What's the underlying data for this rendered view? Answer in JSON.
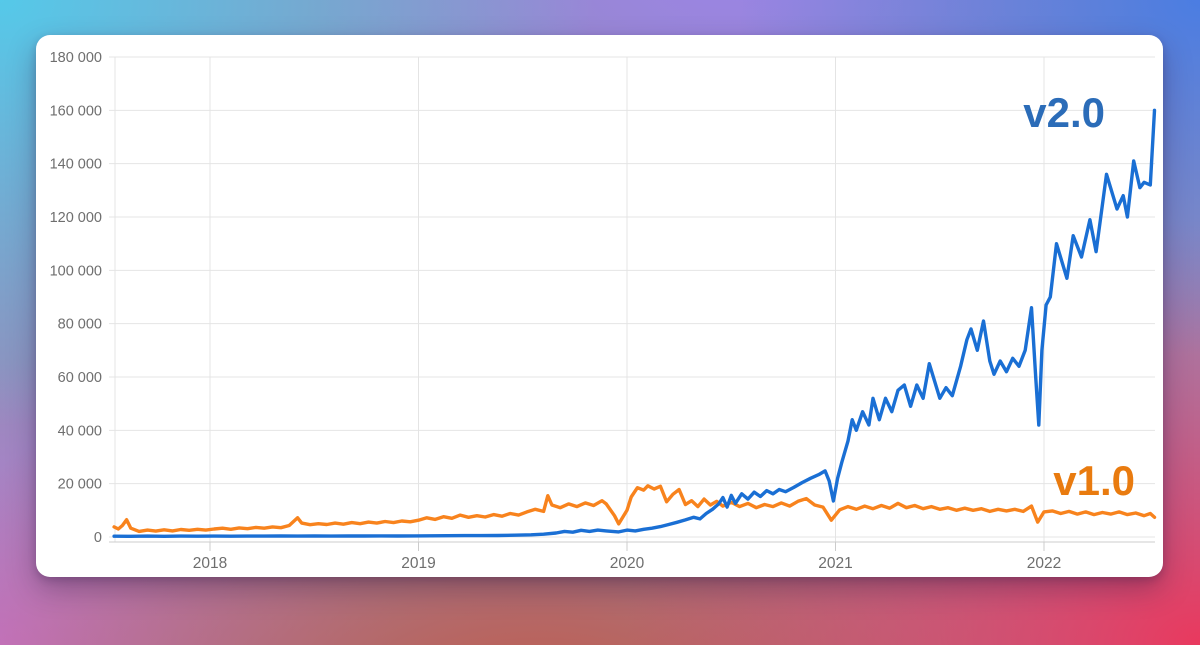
{
  "background": {
    "gradient_colors": [
      "#55c9e9",
      "#9c83ea",
      "#4b7de2",
      "#c277d6",
      "#c25a47",
      "#e9395e"
    ]
  },
  "card": {
    "background": "#ffffff"
  },
  "chart_data": {
    "type": "line",
    "title": "",
    "grid": true,
    "grid_color": "#e4e4e4",
    "axis_color": "#cccccc",
    "tick_text_color": "#6e6e6e",
    "legend_position": "labels-at-line-end-right",
    "x_axis": {
      "unit": "year",
      "range": [
        2017.54,
        2022.53
      ],
      "tick_values": [
        2018,
        2019,
        2020,
        2021,
        2022
      ],
      "tick_labels": [
        "2018",
        "2019",
        "2020",
        "2021",
        "2022"
      ]
    },
    "y_axis": {
      "range": [
        0,
        180000
      ],
      "tick_values": [
        0,
        20000,
        40000,
        60000,
        80000,
        100000,
        120000,
        140000,
        160000,
        180000
      ],
      "tick_labels": [
        "0",
        "20 000",
        "40 000",
        "60 000",
        "80 000",
        "100 000",
        "120 000",
        "140 000",
        "160 000",
        "180 000"
      ]
    },
    "series": [
      {
        "name": "v1.0",
        "color": "#f8831d",
        "label_color": "#e97b0f",
        "points": [
          [
            2017.54,
            3800
          ],
          [
            2017.56,
            3000
          ],
          [
            2017.58,
            4300
          ],
          [
            2017.6,
            6500
          ],
          [
            2017.62,
            3300
          ],
          [
            2017.66,
            2100
          ],
          [
            2017.7,
            2600
          ],
          [
            2017.74,
            2200
          ],
          [
            2017.78,
            2700
          ],
          [
            2017.82,
            2300
          ],
          [
            2017.86,
            2800
          ],
          [
            2017.9,
            2500
          ],
          [
            2017.94,
            2900
          ],
          [
            2017.98,
            2600
          ],
          [
            2018.02,
            3000
          ],
          [
            2018.06,
            3300
          ],
          [
            2018.1,
            2900
          ],
          [
            2018.14,
            3400
          ],
          [
            2018.18,
            3100
          ],
          [
            2018.22,
            3600
          ],
          [
            2018.26,
            3300
          ],
          [
            2018.3,
            3800
          ],
          [
            2018.34,
            3500
          ],
          [
            2018.38,
            4300
          ],
          [
            2018.42,
            7200
          ],
          [
            2018.44,
            5200
          ],
          [
            2018.48,
            4600
          ],
          [
            2018.52,
            5000
          ],
          [
            2018.56,
            4700
          ],
          [
            2018.6,
            5200
          ],
          [
            2018.64,
            4800
          ],
          [
            2018.68,
            5400
          ],
          [
            2018.72,
            5000
          ],
          [
            2018.76,
            5600
          ],
          [
            2018.8,
            5200
          ],
          [
            2018.84,
            5800
          ],
          [
            2018.88,
            5400
          ],
          [
            2018.92,
            6000
          ],
          [
            2018.96,
            5700
          ],
          [
            2019.0,
            6300
          ],
          [
            2019.04,
            7200
          ],
          [
            2019.08,
            6600
          ],
          [
            2019.12,
            7600
          ],
          [
            2019.16,
            7000
          ],
          [
            2019.2,
            8200
          ],
          [
            2019.24,
            7400
          ],
          [
            2019.28,
            8000
          ],
          [
            2019.32,
            7500
          ],
          [
            2019.36,
            8400
          ],
          [
            2019.4,
            7800
          ],
          [
            2019.44,
            8800
          ],
          [
            2019.48,
            8200
          ],
          [
            2019.52,
            9400
          ],
          [
            2019.56,
            10400
          ],
          [
            2019.6,
            9600
          ],
          [
            2019.62,
            15500
          ],
          [
            2019.64,
            12000
          ],
          [
            2019.68,
            11000
          ],
          [
            2019.72,
            12400
          ],
          [
            2019.76,
            11400
          ],
          [
            2019.8,
            12800
          ],
          [
            2019.84,
            11800
          ],
          [
            2019.88,
            13600
          ],
          [
            2019.9,
            12400
          ],
          [
            2019.94,
            8000
          ],
          [
            2019.96,
            4900
          ],
          [
            2020.0,
            10000
          ],
          [
            2020.02,
            15000
          ],
          [
            2020.05,
            18500
          ],
          [
            2020.08,
            17600
          ],
          [
            2020.1,
            19200
          ],
          [
            2020.13,
            18000
          ],
          [
            2020.16,
            19000
          ],
          [
            2020.19,
            13200
          ],
          [
            2020.22,
            16000
          ],
          [
            2020.25,
            17800
          ],
          [
            2020.28,
            12200
          ],
          [
            2020.31,
            13600
          ],
          [
            2020.34,
            11400
          ],
          [
            2020.37,
            14200
          ],
          [
            2020.4,
            12000
          ],
          [
            2020.43,
            13400
          ],
          [
            2020.46,
            11600
          ],
          [
            2020.5,
            13000
          ],
          [
            2020.54,
            11400
          ],
          [
            2020.58,
            12600
          ],
          [
            2020.62,
            11000
          ],
          [
            2020.66,
            12200
          ],
          [
            2020.7,
            11400
          ],
          [
            2020.74,
            12800
          ],
          [
            2020.78,
            11600
          ],
          [
            2020.82,
            13400
          ],
          [
            2020.86,
            14400
          ],
          [
            2020.9,
            12000
          ],
          [
            2020.94,
            11200
          ],
          [
            2020.98,
            6300
          ],
          [
            2021.02,
            10200
          ],
          [
            2021.06,
            11400
          ],
          [
            2021.1,
            10400
          ],
          [
            2021.14,
            11600
          ],
          [
            2021.18,
            10600
          ],
          [
            2021.22,
            11800
          ],
          [
            2021.26,
            10800
          ],
          [
            2021.3,
            12600
          ],
          [
            2021.34,
            11000
          ],
          [
            2021.38,
            11800
          ],
          [
            2021.42,
            10600
          ],
          [
            2021.46,
            11400
          ],
          [
            2021.5,
            10400
          ],
          [
            2021.54,
            11000
          ],
          [
            2021.58,
            10000
          ],
          [
            2021.62,
            10800
          ],
          [
            2021.66,
            10000
          ],
          [
            2021.7,
            10600
          ],
          [
            2021.74,
            9600
          ],
          [
            2021.78,
            10400
          ],
          [
            2021.82,
            9800
          ],
          [
            2021.86,
            10400
          ],
          [
            2021.9,
            9600
          ],
          [
            2021.94,
            11600
          ],
          [
            2021.97,
            5600
          ],
          [
            2022.0,
            9400
          ],
          [
            2022.04,
            9800
          ],
          [
            2022.08,
            8800
          ],
          [
            2022.12,
            9600
          ],
          [
            2022.16,
            8600
          ],
          [
            2022.2,
            9400
          ],
          [
            2022.24,
            8400
          ],
          [
            2022.28,
            9200
          ],
          [
            2022.32,
            8600
          ],
          [
            2022.36,
            9400
          ],
          [
            2022.4,
            8400
          ],
          [
            2022.44,
            9000
          ],
          [
            2022.48,
            8000
          ],
          [
            2022.51,
            8800
          ],
          [
            2022.53,
            7400
          ]
        ]
      },
      {
        "name": "v2.0",
        "color": "#1a6fd4",
        "label_color": "#2b6cb8",
        "points": [
          [
            2017.54,
            300
          ],
          [
            2017.62,
            260
          ],
          [
            2017.7,
            320
          ],
          [
            2017.78,
            280
          ],
          [
            2017.86,
            330
          ],
          [
            2017.94,
            300
          ],
          [
            2018.02,
            340
          ],
          [
            2018.1,
            310
          ],
          [
            2018.18,
            350
          ],
          [
            2018.26,
            330
          ],
          [
            2018.34,
            370
          ],
          [
            2018.42,
            340
          ],
          [
            2018.5,
            380
          ],
          [
            2018.58,
            350
          ],
          [
            2018.66,
            390
          ],
          [
            2018.74,
            370
          ],
          [
            2018.82,
            410
          ],
          [
            2018.9,
            390
          ],
          [
            2018.98,
            430
          ],
          [
            2019.06,
            450
          ],
          [
            2019.14,
            480
          ],
          [
            2019.22,
            510
          ],
          [
            2019.3,
            540
          ],
          [
            2019.38,
            580
          ],
          [
            2019.46,
            660
          ],
          [
            2019.54,
            820
          ],
          [
            2019.6,
            1050
          ],
          [
            2019.66,
            1500
          ],
          [
            2019.7,
            2100
          ],
          [
            2019.74,
            1800
          ],
          [
            2019.78,
            2500
          ],
          [
            2019.82,
            2100
          ],
          [
            2019.86,
            2600
          ],
          [
            2019.9,
            2300
          ],
          [
            2019.96,
            1900
          ],
          [
            2020.0,
            2600
          ],
          [
            2020.04,
            2300
          ],
          [
            2020.08,
            2900
          ],
          [
            2020.12,
            3300
          ],
          [
            2020.16,
            3900
          ],
          [
            2020.2,
            4700
          ],
          [
            2020.24,
            5500
          ],
          [
            2020.28,
            6400
          ],
          [
            2020.32,
            7400
          ],
          [
            2020.35,
            6800
          ],
          [
            2020.38,
            8800
          ],
          [
            2020.41,
            10400
          ],
          [
            2020.44,
            12400
          ],
          [
            2020.46,
            14800
          ],
          [
            2020.48,
            11200
          ],
          [
            2020.5,
            15600
          ],
          [
            2020.52,
            12600
          ],
          [
            2020.55,
            16200
          ],
          [
            2020.58,
            14200
          ],
          [
            2020.61,
            16800
          ],
          [
            2020.64,
            15200
          ],
          [
            2020.67,
            17400
          ],
          [
            2020.7,
            16200
          ],
          [
            2020.73,
            17800
          ],
          [
            2020.76,
            17000
          ],
          [
            2020.8,
            18600
          ],
          [
            2020.84,
            20400
          ],
          [
            2020.88,
            22000
          ],
          [
            2020.92,
            23400
          ],
          [
            2020.95,
            24800
          ],
          [
            2020.97,
            21000
          ],
          [
            2020.99,
            13500
          ],
          [
            2021.01,
            22000
          ],
          [
            2021.03,
            28000
          ],
          [
            2021.06,
            36000
          ],
          [
            2021.08,
            44000
          ],
          [
            2021.1,
            40000
          ],
          [
            2021.13,
            47000
          ],
          [
            2021.16,
            42000
          ],
          [
            2021.18,
            52000
          ],
          [
            2021.21,
            44000
          ],
          [
            2021.24,
            52000
          ],
          [
            2021.27,
            47000
          ],
          [
            2021.3,
            55000
          ],
          [
            2021.33,
            57000
          ],
          [
            2021.36,
            49000
          ],
          [
            2021.39,
            57000
          ],
          [
            2021.42,
            52000
          ],
          [
            2021.45,
            65000
          ],
          [
            2021.5,
            52000
          ],
          [
            2021.53,
            56000
          ],
          [
            2021.56,
            53000
          ],
          [
            2021.6,
            64000
          ],
          [
            2021.63,
            74000
          ],
          [
            2021.65,
            78000
          ],
          [
            2021.68,
            70000
          ],
          [
            2021.71,
            81000
          ],
          [
            2021.74,
            66000
          ],
          [
            2021.76,
            61000
          ],
          [
            2021.79,
            66000
          ],
          [
            2021.82,
            62000
          ],
          [
            2021.85,
            67000
          ],
          [
            2021.88,
            64000
          ],
          [
            2021.91,
            70000
          ],
          [
            2021.94,
            86000
          ],
          [
            2021.96,
            60000
          ],
          [
            2021.975,
            42000
          ],
          [
            2021.99,
            70000
          ],
          [
            2022.01,
            87000
          ],
          [
            2022.03,
            90000
          ],
          [
            2022.06,
            110000
          ],
          [
            2022.11,
            97000
          ],
          [
            2022.14,
            113000
          ],
          [
            2022.18,
            105000
          ],
          [
            2022.22,
            119000
          ],
          [
            2022.25,
            107000
          ],
          [
            2022.3,
            136000
          ],
          [
            2022.35,
            123000
          ],
          [
            2022.38,
            128000
          ],
          [
            2022.4,
            120000
          ],
          [
            2022.43,
            141000
          ],
          [
            2022.46,
            131000
          ],
          [
            2022.48,
            133000
          ],
          [
            2022.51,
            132000
          ],
          [
            2022.53,
            160000
          ]
        ]
      }
    ]
  }
}
